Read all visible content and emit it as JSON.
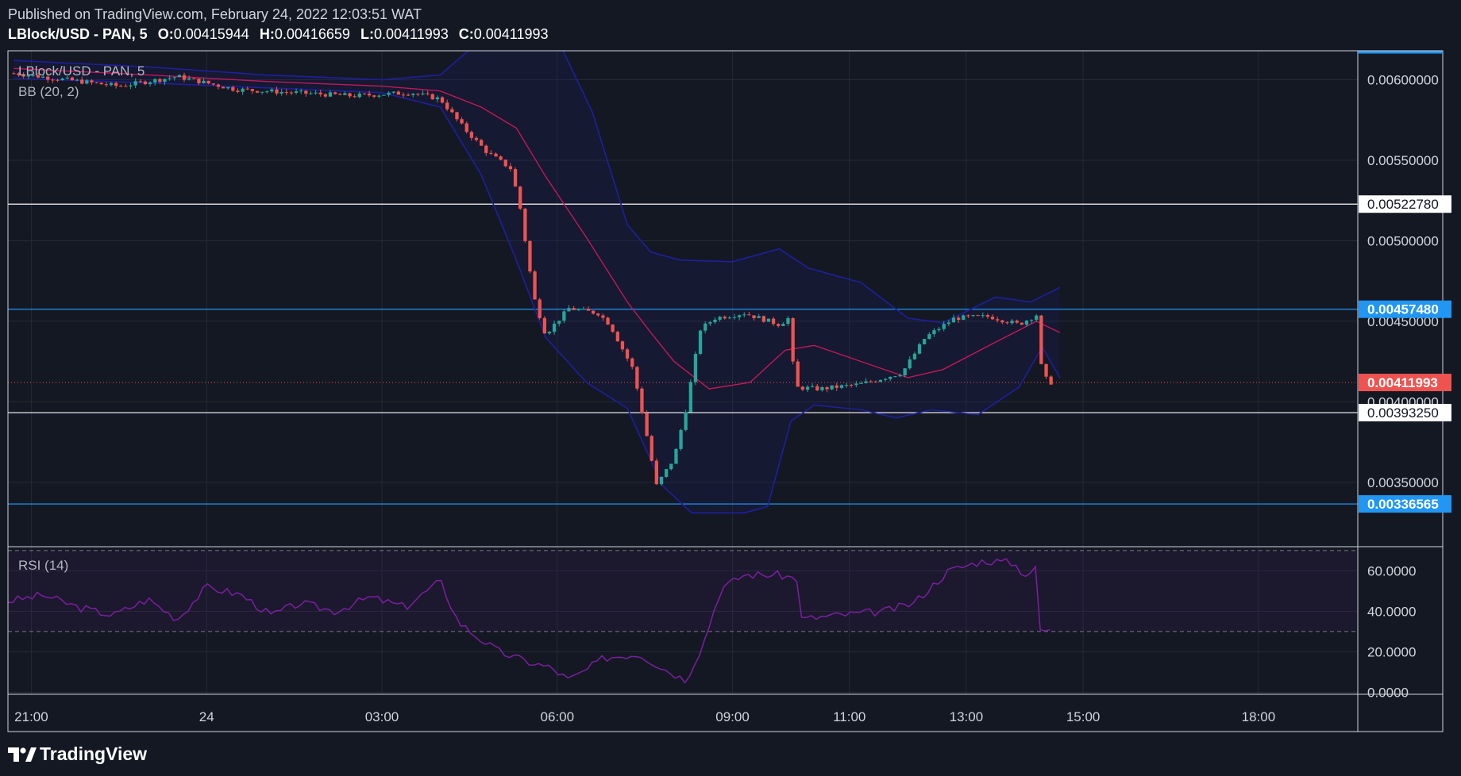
{
  "header": {
    "published": "Published on TradingView.com, February 24, 2022 12:03:51 WAT",
    "symbol": "LBlock/USD - PAN, 5",
    "o_label": "O:",
    "o_value": "0.00415944",
    "h_label": "H:",
    "h_value": "0.00416659",
    "l_label": "L:",
    "l_value": "0.00411993",
    "c_label": "C:",
    "c_value": "0.00411993"
  },
  "legend": {
    "symbol": "LBlock/USD - PAN, 5",
    "bb": "BB (20, 2)",
    "rsi": "RSI (14)"
  },
  "brand": "TradingView",
  "colors": {
    "background": "#141823",
    "up": "#26a69a",
    "down": "#ef5350",
    "bb_band": "#1f1f9e",
    "bb_basis": "#c2185b",
    "rsi_line": "#7b1fa2",
    "blue_line": "#2196f3",
    "white_line": "#ffffff"
  },
  "chart_data": [
    {
      "type": "candlestick",
      "title": "LBlock/USD - PAN, 5",
      "price_axis": {
        "range": [
          0.0031,
          0.00618
        ],
        "ticks": [
          "0.00600000",
          "0.00550000",
          "0.00500000",
          "0.00450000",
          "0.00400000",
          "0.00350000"
        ],
        "tick_values": [
          0.006,
          0.0055,
          0.005,
          0.0045,
          0.004,
          0.0035
        ]
      },
      "time_axis": {
        "labels": [
          "21:00",
          "24",
          "03:00",
          "06:00",
          "09:00",
          "11:00",
          "13:00",
          "15:00",
          "18:00"
        ],
        "hours_from_2100": [
          0,
          3,
          6,
          9,
          12,
          14,
          16,
          18,
          21
        ],
        "range_hours": [
          -0.4,
          22.7
        ]
      },
      "horizontal_lines": [
        {
          "value": 0.0052278,
          "label": "0.00522780",
          "style": "white"
        },
        {
          "value": 0.0045748,
          "label": "0.00457480",
          "style": "blue"
        },
        {
          "value": 0.0039325,
          "label": "0.00393250",
          "style": "white"
        },
        {
          "value": 0.00336565,
          "label": "0.00336565",
          "style": "blue"
        }
      ],
      "last_price": {
        "value": 0.00411993,
        "label": "0.00411993"
      },
      "path_keypoints": [
        {
          "t": -0.3,
          "p": 0.00604
        },
        {
          "t": 0.6,
          "p": 0.006
        },
        {
          "t": 1.5,
          "p": 0.00596
        },
        {
          "t": 2.5,
          "p": 0.00602
        },
        {
          "t": 3.5,
          "p": 0.00594
        },
        {
          "t": 4.5,
          "p": 0.00592
        },
        {
          "t": 5.5,
          "p": 0.0059
        },
        {
          "t": 6.5,
          "p": 0.00592
        },
        {
          "t": 7.0,
          "p": 0.00588
        },
        {
          "t": 7.4,
          "p": 0.0057
        },
        {
          "t": 7.8,
          "p": 0.00555
        },
        {
          "t": 8.2,
          "p": 0.00545
        },
        {
          "t": 8.35,
          "p": 0.00524
        },
        {
          "t": 8.6,
          "p": 0.00465
        },
        {
          "t": 8.8,
          "p": 0.00442
        },
        {
          "t": 9.2,
          "p": 0.00458
        },
        {
          "t": 9.7,
          "p": 0.00455
        },
        {
          "t": 9.9,
          "p": 0.00448
        },
        {
          "t": 10.3,
          "p": 0.0042
        },
        {
          "t": 10.5,
          "p": 0.00385
        },
        {
          "t": 10.7,
          "p": 0.00348
        },
        {
          "t": 11.0,
          "p": 0.00365
        },
        {
          "t": 11.2,
          "p": 0.00395
        },
        {
          "t": 11.45,
          "p": 0.00445
        },
        {
          "t": 11.7,
          "p": 0.00452
        },
        {
          "t": 12.2,
          "p": 0.00455
        },
        {
          "t": 12.8,
          "p": 0.00448
        },
        {
          "t": 13.0,
          "p": 0.00453
        },
        {
          "t": 13.05,
          "p": 0.00409
        },
        {
          "t": 13.5,
          "p": 0.00408
        },
        {
          "t": 14.2,
          "p": 0.00411
        },
        {
          "t": 14.9,
          "p": 0.00418
        },
        {
          "t": 15.3,
          "p": 0.0044
        },
        {
          "t": 15.8,
          "p": 0.00452
        },
        {
          "t": 16.4,
          "p": 0.00453
        },
        {
          "t": 16.9,
          "p": 0.00448
        },
        {
          "t": 17.2,
          "p": 0.00454
        },
        {
          "t": 17.3,
          "p": 0.00416
        },
        {
          "t": 17.45,
          "p": 0.00412
        }
      ],
      "bb_upper": [
        {
          "t": -0.3,
          "p": 0.00612
        },
        {
          "t": 2,
          "p": 0.00608
        },
        {
          "t": 4,
          "p": 0.00603
        },
        {
          "t": 6,
          "p": 0.006
        },
        {
          "t": 7.0,
          "p": 0.00603
        },
        {
          "t": 7.7,
          "p": 0.00625
        },
        {
          "t": 8.3,
          "p": 0.0063
        },
        {
          "t": 9.1,
          "p": 0.00618
        },
        {
          "t": 9.6,
          "p": 0.0058
        },
        {
          "t": 10.2,
          "p": 0.0051
        },
        {
          "t": 10.6,
          "p": 0.00493
        },
        {
          "t": 11.1,
          "p": 0.00488
        },
        {
          "t": 12.0,
          "p": 0.00487
        },
        {
          "t": 12.8,
          "p": 0.00495
        },
        {
          "t": 13.3,
          "p": 0.00483
        },
        {
          "t": 14.2,
          "p": 0.00474
        },
        {
          "t": 15.0,
          "p": 0.00452
        },
        {
          "t": 15.6,
          "p": 0.00449
        },
        {
          "t": 16.5,
          "p": 0.00465
        },
        {
          "t": 17.1,
          "p": 0.00462
        },
        {
          "t": 17.6,
          "p": 0.00471
        }
      ],
      "bb_basis": [
        {
          "t": -0.3,
          "p": 0.00607
        },
        {
          "t": 2,
          "p": 0.00603
        },
        {
          "t": 4,
          "p": 0.00599
        },
        {
          "t": 6,
          "p": 0.00596
        },
        {
          "t": 7.0,
          "p": 0.00593
        },
        {
          "t": 7.7,
          "p": 0.00583
        },
        {
          "t": 8.3,
          "p": 0.0057
        },
        {
          "t": 8.8,
          "p": 0.0054
        },
        {
          "t": 9.5,
          "p": 0.00502
        },
        {
          "t": 10.2,
          "p": 0.00462
        },
        {
          "t": 10.6,
          "p": 0.00443
        },
        {
          "t": 11.0,
          "p": 0.00425
        },
        {
          "t": 11.6,
          "p": 0.00408
        },
        {
          "t": 12.3,
          "p": 0.00412
        },
        {
          "t": 12.9,
          "p": 0.00432
        },
        {
          "t": 13.4,
          "p": 0.00435
        },
        {
          "t": 14.2,
          "p": 0.00425
        },
        {
          "t": 15.0,
          "p": 0.00415
        },
        {
          "t": 15.6,
          "p": 0.0042
        },
        {
          "t": 16.5,
          "p": 0.00437
        },
        {
          "t": 17.2,
          "p": 0.0045
        },
        {
          "t": 17.6,
          "p": 0.00443
        }
      ],
      "bb_lower": [
        {
          "t": -0.3,
          "p": 0.00601
        },
        {
          "t": 2,
          "p": 0.00598
        },
        {
          "t": 4,
          "p": 0.00595
        },
        {
          "t": 6,
          "p": 0.00592
        },
        {
          "t": 7.0,
          "p": 0.00583
        },
        {
          "t": 7.7,
          "p": 0.00541
        },
        {
          "t": 8.3,
          "p": 0.00488
        },
        {
          "t": 8.8,
          "p": 0.0044
        },
        {
          "t": 9.5,
          "p": 0.00412
        },
        {
          "t": 10.2,
          "p": 0.00396
        },
        {
          "t": 10.8,
          "p": 0.00348
        },
        {
          "t": 11.3,
          "p": 0.00331
        },
        {
          "t": 12.2,
          "p": 0.00331
        },
        {
          "t": 12.6,
          "p": 0.00335
        },
        {
          "t": 13.0,
          "p": 0.00388
        },
        {
          "t": 13.4,
          "p": 0.00398
        },
        {
          "t": 14.2,
          "p": 0.00395
        },
        {
          "t": 14.8,
          "p": 0.0039
        },
        {
          "t": 15.4,
          "p": 0.00395
        },
        {
          "t": 16.2,
          "p": 0.00392
        },
        {
          "t": 16.9,
          "p": 0.00409
        },
        {
          "t": 17.3,
          "p": 0.00434
        },
        {
          "t": 17.6,
          "p": 0.00415
        }
      ]
    },
    {
      "type": "line",
      "title": "RSI (14)",
      "y_axis": {
        "range": [
          -1,
          71.5
        ],
        "ticks": [
          "60.0000",
          "40.0000",
          "20.0000",
          "0.0000"
        ],
        "tick_values": [
          60,
          40,
          20,
          0
        ]
      },
      "bands": {
        "upper": 70,
        "lower": 30
      },
      "series": [
        {
          "points": [
            {
              "t": -0.4,
              "v": 45
            },
            {
              "t": 0.2,
              "v": 48
            },
            {
              "t": 0.8,
              "v": 42
            },
            {
              "t": 1.4,
              "v": 38
            },
            {
              "t": 2.0,
              "v": 46
            },
            {
              "t": 2.5,
              "v": 36
            },
            {
              "t": 3.0,
              "v": 52
            },
            {
              "t": 3.6,
              "v": 48
            },
            {
              "t": 4.1,
              "v": 38
            },
            {
              "t": 4.6,
              "v": 44
            },
            {
              "t": 5.2,
              "v": 40
            },
            {
              "t": 5.8,
              "v": 47
            },
            {
              "t": 6.4,
              "v": 42
            },
            {
              "t": 7.0,
              "v": 55
            },
            {
              "t": 7.3,
              "v": 35
            },
            {
              "t": 7.6,
              "v": 28
            },
            {
              "t": 8.0,
              "v": 20
            },
            {
              "t": 8.5,
              "v": 15
            },
            {
              "t": 8.9,
              "v": 12
            },
            {
              "t": 9.2,
              "v": 6
            },
            {
              "t": 9.5,
              "v": 11
            },
            {
              "t": 9.8,
              "v": 17
            },
            {
              "t": 10.4,
              "v": 19
            },
            {
              "t": 10.8,
              "v": 12
            },
            {
              "t": 11.2,
              "v": 6
            },
            {
              "t": 11.5,
              "v": 24
            },
            {
              "t": 11.8,
              "v": 51
            },
            {
              "t": 12.2,
              "v": 58
            },
            {
              "t": 12.8,
              "v": 58
            },
            {
              "t": 13.1,
              "v": 56
            },
            {
              "t": 13.15,
              "v": 36
            },
            {
              "t": 13.8,
              "v": 38
            },
            {
              "t": 14.6,
              "v": 40
            },
            {
              "t": 15.1,
              "v": 44
            },
            {
              "t": 15.4,
              "v": 52
            },
            {
              "t": 15.7,
              "v": 60
            },
            {
              "t": 16.3,
              "v": 65
            },
            {
              "t": 16.8,
              "v": 64
            },
            {
              "t": 17.0,
              "v": 58
            },
            {
              "t": 17.2,
              "v": 61
            },
            {
              "t": 17.25,
              "v": 31
            },
            {
              "t": 17.45,
              "v": 30
            }
          ]
        }
      ]
    }
  ]
}
